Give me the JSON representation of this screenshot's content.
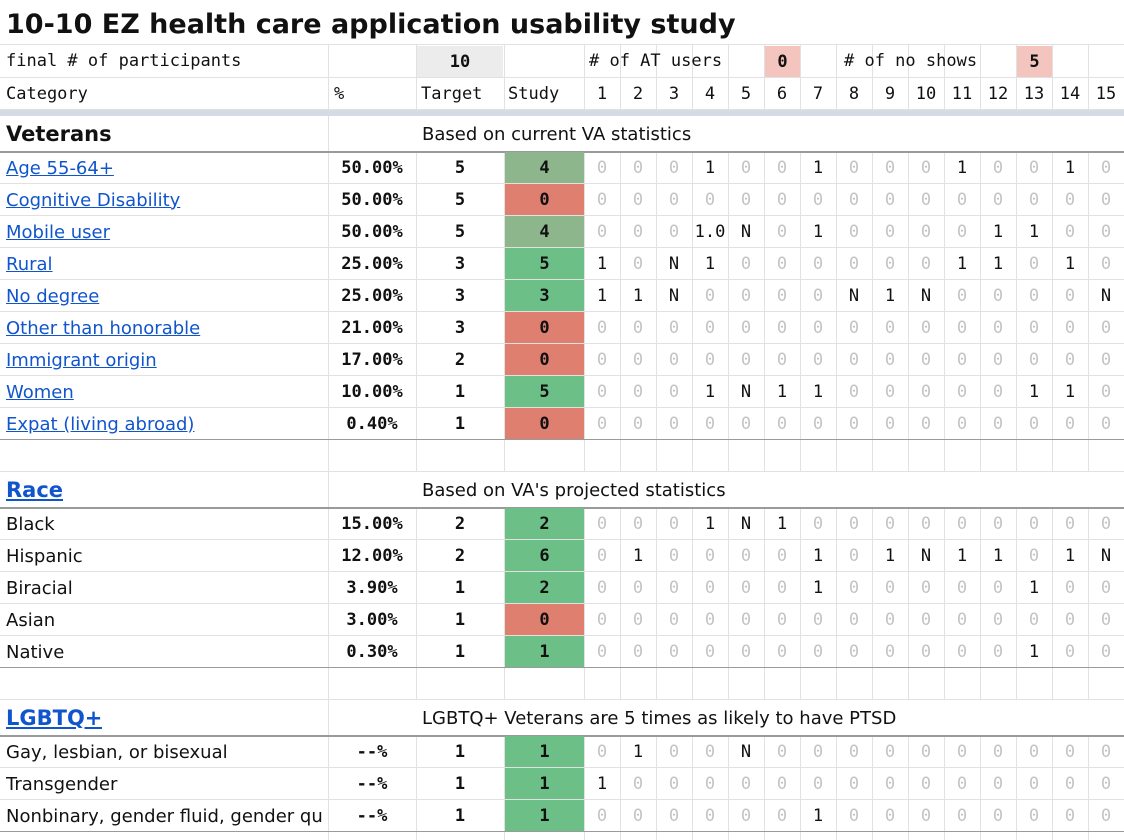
{
  "title": "10-10 EZ health care application usability study",
  "summary": {
    "label": "final # of participants",
    "participants": "10",
    "at_label": "# of AT users",
    "at_users": "0",
    "no_show_label": "# of no shows",
    "no_shows": "5"
  },
  "header": {
    "category": "Category",
    "percent": "%",
    "target": "Target",
    "study": "Study",
    "participants": [
      "1",
      "2",
      "3",
      "4",
      "5",
      "6",
      "7",
      "8",
      "9",
      "10",
      "11",
      "12",
      "13",
      "14",
      "15"
    ]
  },
  "sections": [
    {
      "title": "Veterans",
      "note": "Based on current VA statistics",
      "link": false,
      "rows_link": true,
      "rows": [
        {
          "category": "Age 55-64+",
          "percent": "50.00%",
          "target": "5",
          "study": "4",
          "study_color": "#8db68c",
          "cells": [
            "0",
            "0",
            "0",
            "1",
            "0",
            "0",
            "1",
            "0",
            "0",
            "0",
            "1",
            "0",
            "0",
            "1",
            "0"
          ]
        },
        {
          "category": "Cognitive Disability",
          "percent": "50.00%",
          "target": "5",
          "study": "0",
          "study_color": "#df7f70",
          "cells": [
            "0",
            "0",
            "0",
            "0",
            "0",
            "0",
            "0",
            "0",
            "0",
            "0",
            "0",
            "0",
            "0",
            "0",
            "0"
          ]
        },
        {
          "category": "Mobile user",
          "percent": "50.00%",
          "target": "5",
          "study": "4",
          "study_color": "#8db68c",
          "cells": [
            "0",
            "0",
            "0",
            "1.0",
            "N",
            "0",
            "1",
            "0",
            "0",
            "0",
            "0",
            "1",
            "1",
            "0",
            "0"
          ]
        },
        {
          "category": "Rural",
          "percent": "25.00%",
          "target": "3",
          "study": "5",
          "study_color": "#6cbf86",
          "cells": [
            "1",
            "0",
            "N",
            "1",
            "0",
            "0",
            "0",
            "0",
            "0",
            "0",
            "1",
            "1",
            "0",
            "1",
            "0"
          ]
        },
        {
          "category": "No degree",
          "percent": "25.00%",
          "target": "3",
          "study": "3",
          "study_color": "#6cbf86",
          "cells": [
            "1",
            "1",
            "N",
            "0",
            "0",
            "0",
            "0",
            "N",
            "1",
            "N",
            "0",
            "0",
            "0",
            "0",
            "N"
          ]
        },
        {
          "category": "Other than honorable",
          "percent": "21.00%",
          "target": "3",
          "study": "0",
          "study_color": "#df7f70",
          "cells": [
            "0",
            "0",
            "0",
            "0",
            "0",
            "0",
            "0",
            "0",
            "0",
            "0",
            "0",
            "0",
            "0",
            "0",
            "0"
          ]
        },
        {
          "category": "Immigrant origin",
          "percent": "17.00%",
          "target": "2",
          "study": "0",
          "study_color": "#df7f70",
          "cells": [
            "0",
            "0",
            "0",
            "0",
            "0",
            "0",
            "0",
            "0",
            "0",
            "0",
            "0",
            "0",
            "0",
            "0",
            "0"
          ]
        },
        {
          "category": "Women",
          "percent": "10.00%",
          "target": "1",
          "study": "5",
          "study_color": "#6cbf86",
          "cells": [
            "0",
            "0",
            "0",
            "1",
            "N",
            "1",
            "1",
            "0",
            "0",
            "0",
            "0",
            "0",
            "1",
            "1",
            "0"
          ]
        },
        {
          "category": "Expat (living abroad)",
          "percent": "0.40%",
          "target": "1",
          "study": "0",
          "study_color": "#df7f70",
          "cells": [
            "0",
            "0",
            "0",
            "0",
            "0",
            "0",
            "0",
            "0",
            "0",
            "0",
            "0",
            "0",
            "0",
            "0",
            "0"
          ]
        }
      ]
    },
    {
      "title": "Race",
      "note": "Based on VA's projected statistics",
      "link": true,
      "rows_link": false,
      "rows": [
        {
          "category": "Black",
          "percent": "15.00%",
          "target": "2",
          "study": "2",
          "study_color": "#6cbf86",
          "cells": [
            "0",
            "0",
            "0",
            "1",
            "N",
            "1",
            "0",
            "0",
            "0",
            "0",
            "0",
            "0",
            "0",
            "0",
            "0"
          ]
        },
        {
          "category": "Hispanic",
          "percent": "12.00%",
          "target": "2",
          "study": "6",
          "study_color": "#6cbf86",
          "cells": [
            "0",
            "1",
            "0",
            "0",
            "0",
            "0",
            "1",
            "0",
            "1",
            "N",
            "1",
            "1",
            "0",
            "1",
            "N"
          ]
        },
        {
          "category": "Biracial",
          "percent": "3.90%",
          "target": "1",
          "study": "2",
          "study_color": "#6cbf86",
          "cells": [
            "0",
            "0",
            "0",
            "0",
            "0",
            "0",
            "1",
            "0",
            "0",
            "0",
            "0",
            "0",
            "1",
            "0",
            "0"
          ]
        },
        {
          "category": "Asian",
          "percent": "3.00%",
          "target": "1",
          "study": "0",
          "study_color": "#df7f70",
          "cells": [
            "0",
            "0",
            "0",
            "0",
            "0",
            "0",
            "0",
            "0",
            "0",
            "0",
            "0",
            "0",
            "0",
            "0",
            "0"
          ]
        },
        {
          "category": "Native",
          "percent": "0.30%",
          "target": "1",
          "study": "1",
          "study_color": "#6cbf86",
          "cells": [
            "0",
            "0",
            "0",
            "0",
            "0",
            "0",
            "0",
            "0",
            "0",
            "0",
            "0",
            "0",
            "1",
            "0",
            "0"
          ]
        }
      ]
    },
    {
      "title": "LGBTQ+",
      "note": "LGBTQ+ Veterans are 5 times as likely to have PTSD",
      "link": true,
      "rows_link": false,
      "rows": [
        {
          "category": "Gay, lesbian, or bisexual",
          "percent": "--%",
          "target": "1",
          "study": "1",
          "study_color": "#6cbf86",
          "cells": [
            "0",
            "1",
            "0",
            "0",
            "N",
            "0",
            "0",
            "0",
            "0",
            "0",
            "0",
            "0",
            "0",
            "0",
            "0"
          ]
        },
        {
          "category": "Transgender",
          "percent": "--%",
          "target": "1",
          "study": "1",
          "study_color": "#6cbf86",
          "cells": [
            "1",
            "0",
            "0",
            "0",
            "0",
            "0",
            "0",
            "0",
            "0",
            "0",
            "0",
            "0",
            "0",
            "0",
            "0"
          ]
        },
        {
          "category": "Nonbinary, gender fluid, gender qu",
          "percent": "--%",
          "target": "1",
          "study": "1",
          "study_color": "#6cbf86",
          "cells": [
            "0",
            "0",
            "0",
            "0",
            "0",
            "0",
            "1",
            "0",
            "0",
            "0",
            "0",
            "0",
            "0",
            "0",
            "0"
          ]
        }
      ]
    }
  ]
}
